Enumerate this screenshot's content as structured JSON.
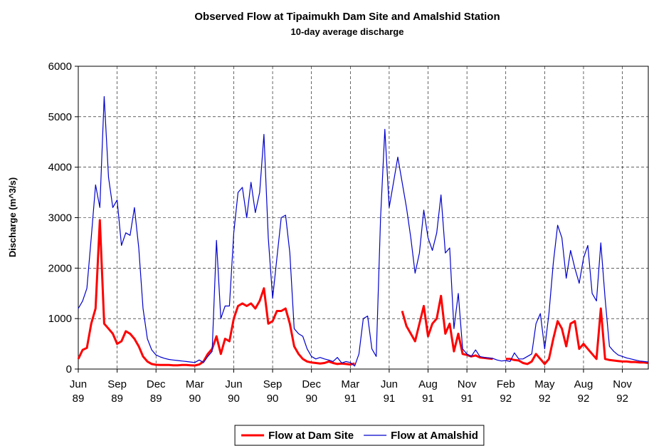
{
  "chart_data": {
    "type": "line",
    "title": "Observed Flow at Tipaimukh Dam Site and Amalshid Station",
    "subtitle": "10-day average discharge",
    "y_label": "Discharge (m^3/s)",
    "categories": [
      "Jun 89",
      null,
      null,
      null,
      null,
      null,
      null,
      null,
      null,
      "Sep 89",
      null,
      null,
      null,
      null,
      null,
      null,
      null,
      null,
      "Dec 89",
      null,
      null,
      null,
      null,
      null,
      null,
      null,
      null,
      "Mar 90",
      null,
      null,
      null,
      null,
      null,
      null,
      null,
      null,
      "Jun 90",
      null,
      null,
      null,
      null,
      null,
      null,
      null,
      null,
      "Sep 90",
      null,
      null,
      null,
      null,
      null,
      null,
      null,
      null,
      "Dec 90",
      null,
      null,
      null,
      null,
      null,
      null,
      null,
      null,
      "Mar 91",
      null,
      null,
      null,
      null,
      null,
      null,
      null,
      null,
      "Jun 91",
      null,
      null,
      null,
      null,
      null,
      null,
      null,
      null,
      "Aug 91",
      null,
      null,
      null,
      null,
      null,
      null,
      null,
      null,
      "Nov 91",
      null,
      null,
      null,
      null,
      null,
      null,
      null,
      null,
      "Feb 92",
      null,
      null,
      null,
      null,
      null,
      null,
      null,
      null,
      "May 92",
      null,
      null,
      null,
      null,
      null,
      null,
      null,
      null,
      "Aug 92",
      null,
      null,
      null,
      null,
      null,
      null,
      null,
      null,
      "Nov 92",
      null,
      null,
      null,
      null,
      null,
      null
    ],
    "series": [
      {
        "name": "Flow at Dam Site",
        "color": "#ff0000",
        "width": 3,
        "values": [
          200,
          380,
          420,
          900,
          1200,
          2950,
          900,
          800,
          700,
          500,
          550,
          750,
          700,
          600,
          450,
          250,
          150,
          100,
          85,
          80,
          80,
          80,
          75,
          75,
          80,
          80,
          75,
          70,
          90,
          150,
          300,
          400,
          650,
          300,
          600,
          550,
          1000,
          1250,
          1300,
          1250,
          1300,
          1200,
          1350,
          1600,
          900,
          950,
          1150,
          1150,
          1200,
          900,
          450,
          300,
          200,
          150,
          130,
          120,
          110,
          120,
          150,
          120,
          100,
          110,
          100,
          90,
          110,
          null,
          null,
          null,
          null,
          null,
          null,
          null,
          null,
          null,
          null,
          1150,
          850,
          700,
          550,
          900,
          1250,
          650,
          900,
          1000,
          1450,
          700,
          900,
          350,
          700,
          300,
          280,
          250,
          270,
          230,
          220,
          210,
          200,
          null,
          null,
          200,
          200,
          180,
          170,
          120,
          100,
          150,
          300,
          200,
          100,
          200,
          600,
          950,
          800,
          450,
          900,
          950,
          400,
          500,
          400,
          300,
          200,
          1200,
          200,
          180,
          170,
          160,
          150,
          150,
          140,
          140,
          130,
          130,
          120
        ]
      },
      {
        "name": "Flow at Amalshid",
        "color": "#0000cc",
        "width": 1.2,
        "values": [
          1200,
          1350,
          1600,
          2600,
          3650,
          3200,
          5400,
          3800,
          3200,
          3350,
          2450,
          2700,
          2650,
          3200,
          2400,
          1200,
          600,
          380,
          280,
          240,
          210,
          190,
          180,
          170,
          160,
          150,
          140,
          130,
          180,
          130,
          250,
          350,
          2550,
          1000,
          1250,
          1250,
          2700,
          3500,
          3600,
          3000,
          3700,
          3100,
          3500,
          4650,
          2600,
          1400,
          2200,
          3000,
          3050,
          2300,
          800,
          700,
          650,
          400,
          250,
          200,
          230,
          200,
          180,
          150,
          230,
          120,
          150,
          130,
          60,
          300,
          1000,
          1050,
          400,
          250,
          3000,
          4750,
          3200,
          3700,
          4200,
          3700,
          3200,
          2600,
          1900,
          2300,
          3150,
          2600,
          2350,
          2700,
          3450,
          2300,
          2400,
          800,
          1500,
          400,
          300,
          250,
          380,
          250,
          230,
          220,
          210,
          180,
          160,
          170,
          150,
          320,
          200,
          200,
          250,
          300,
          900,
          1100,
          400,
          1100,
          2100,
          2850,
          2600,
          1800,
          2350,
          2000,
          1700,
          2200,
          2450,
          1500,
          1350,
          2500,
          1400,
          450,
          350,
          280,
          250,
          220,
          200,
          180,
          160,
          150,
          140
        ]
      }
    ],
    "ylim": [
      0,
      6000
    ],
    "yticks": [
      0,
      1000,
      2000,
      3000,
      4000,
      5000,
      6000
    ],
    "grid": true,
    "legend": "bottom"
  }
}
